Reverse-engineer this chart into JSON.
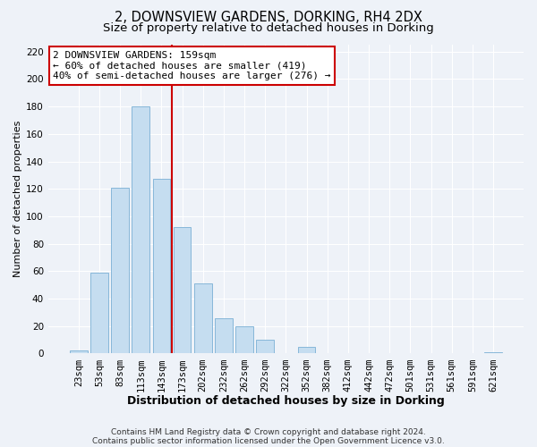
{
  "title": "2, DOWNSVIEW GARDENS, DORKING, RH4 2DX",
  "subtitle": "Size of property relative to detached houses in Dorking",
  "xlabel": "Distribution of detached houses by size in Dorking",
  "ylabel": "Number of detached properties",
  "bar_color": "#c5ddf0",
  "bar_edge_color": "#7ab0d4",
  "categories": [
    "23sqm",
    "53sqm",
    "83sqm",
    "113sqm",
    "143sqm",
    "173sqm",
    "202sqm",
    "232sqm",
    "262sqm",
    "292sqm",
    "322sqm",
    "352sqm",
    "382sqm",
    "412sqm",
    "442sqm",
    "472sqm",
    "501sqm",
    "531sqm",
    "561sqm",
    "591sqm",
    "621sqm"
  ],
  "values": [
    2,
    59,
    121,
    180,
    127,
    92,
    51,
    26,
    20,
    10,
    0,
    5,
    0,
    0,
    0,
    0,
    0,
    0,
    0,
    0,
    1
  ],
  "vline_index": 4.5,
  "vline_color": "#cc0000",
  "ylim": [
    0,
    225
  ],
  "yticks": [
    0,
    20,
    40,
    60,
    80,
    100,
    120,
    140,
    160,
    180,
    200,
    220
  ],
  "annotation_title": "2 DOWNSVIEW GARDENS: 159sqm",
  "annotation_line1": "← 60% of detached houses are smaller (419)",
  "annotation_line2": "40% of semi-detached houses are larger (276) →",
  "footnote1": "Contains HM Land Registry data © Crown copyright and database right 2024.",
  "footnote2": "Contains public sector information licensed under the Open Government Licence v3.0.",
  "background_color": "#eef2f8",
  "grid_color": "#ffffff",
  "title_fontsize": 10.5,
  "subtitle_fontsize": 9.5,
  "xlabel_fontsize": 9,
  "ylabel_fontsize": 8,
  "tick_fontsize": 7.5,
  "annotation_fontsize": 8,
  "footnote_fontsize": 6.5
}
